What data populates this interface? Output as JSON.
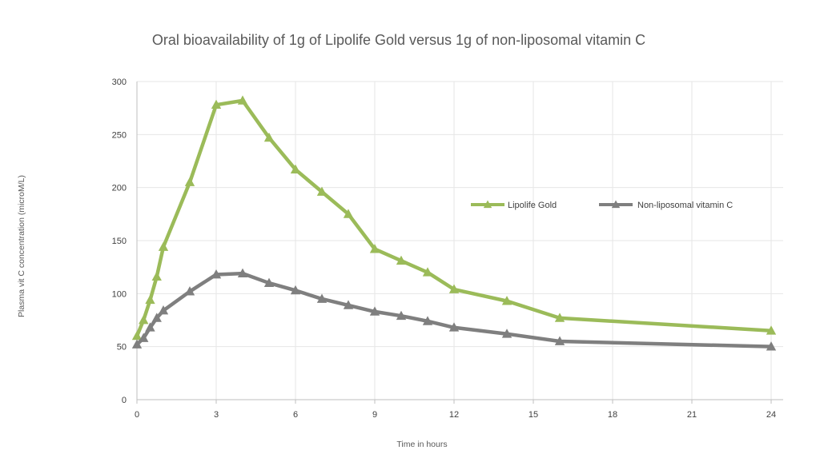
{
  "chart_data": {
    "type": "line",
    "title": "Oral bioavailability of 1g of Lipolife Gold versus 1g of non-liposomal vitamin C",
    "xlabel": "Time in hours",
    "ylabel": "Plasma vit C concentration (microM/L)",
    "xlim": [
      0,
      24
    ],
    "ylim": [
      0,
      300
    ],
    "xticks": [
      0,
      3,
      6,
      9,
      12,
      15,
      18,
      21,
      24
    ],
    "yticks": [
      0,
      50,
      100,
      150,
      200,
      250,
      300
    ],
    "grid": true,
    "legend_position": "right-middle",
    "series": [
      {
        "name": "Lipolife Gold",
        "color": "#9bbb59",
        "marker": "triangle",
        "x": [
          0,
          0.25,
          0.5,
          0.75,
          1,
          2,
          3,
          4,
          5,
          6,
          7,
          8,
          9,
          10,
          11,
          12,
          14,
          16,
          24
        ],
        "y": [
          60,
          75,
          94,
          116,
          144,
          205,
          278,
          282,
          247,
          217,
          196,
          175,
          142,
          131,
          120,
          104,
          93,
          77,
          65
        ]
      },
      {
        "name": "Non-liposomal vitamin C",
        "color": "#7f7f7f",
        "marker": "triangle",
        "x": [
          0,
          0.25,
          0.5,
          0.75,
          1,
          2,
          3,
          4,
          5,
          6,
          7,
          8,
          9,
          10,
          11,
          12,
          14,
          16,
          24
        ],
        "y": [
          52,
          58,
          68,
          77,
          84,
          102,
          118,
          119,
          110,
          103,
          95,
          89,
          83,
          79,
          74,
          68,
          62,
          55,
          50
        ]
      }
    ]
  }
}
